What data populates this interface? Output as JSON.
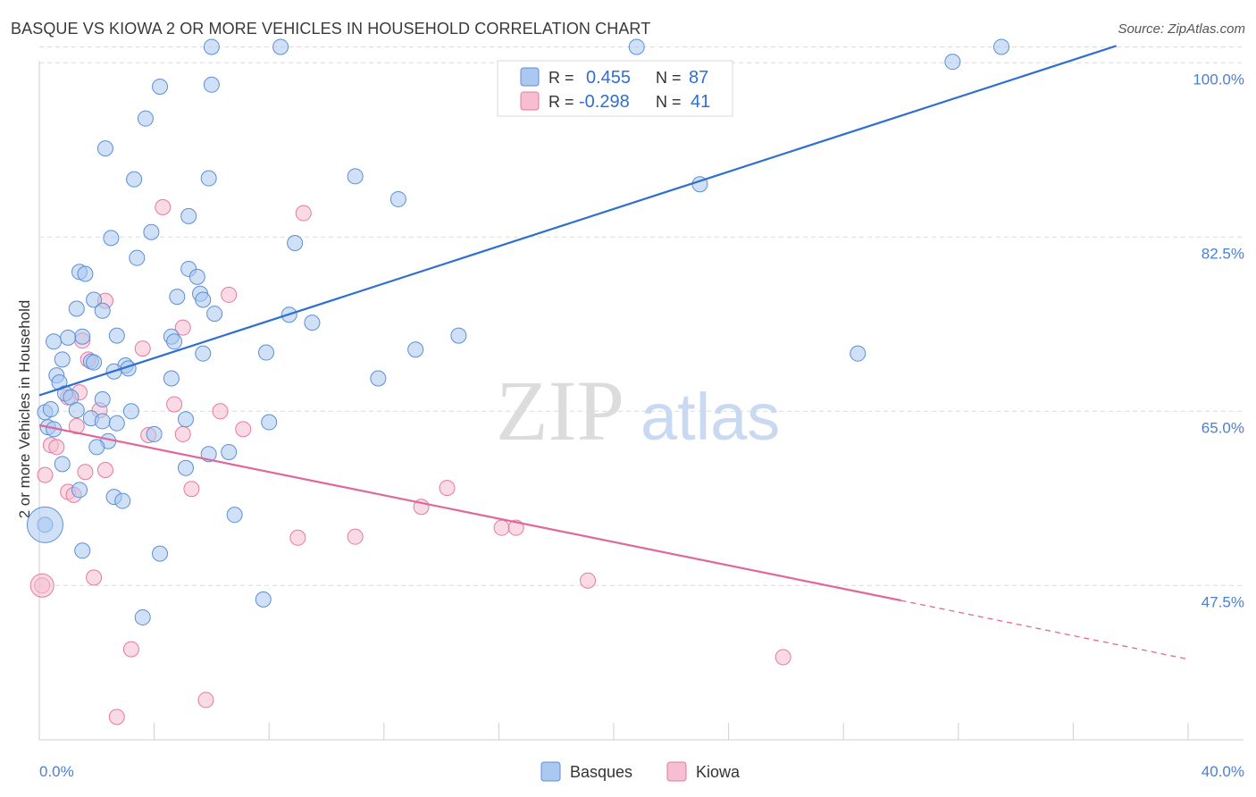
{
  "header": {
    "title": "BASQUE VS KIOWA 2 OR MORE VEHICLES IN HOUSEHOLD CORRELATION CHART",
    "source": "Source: ZipAtlas.com"
  },
  "watermark": {
    "zip": "ZIP",
    "atlas": "atlas"
  },
  "legend_top": {
    "rows": [
      {
        "r_label": "R =",
        "r_value": "0.455",
        "n_label": "N =",
        "n_value": "87"
      },
      {
        "r_label": "R =",
        "r_value": "-0.298",
        "n_label": "N =",
        "n_value": "41"
      }
    ]
  },
  "colors": {
    "basques_fill": "#aac8f0",
    "basques_stroke": "#5b8fd6",
    "basques_line": "#2f6fcf",
    "kiowa_fill": "#f6bed0",
    "kiowa_stroke": "#e47aa0",
    "kiowa_line": "#e0679a",
    "axis_text": "#4a7fd4",
    "grid": "#dcdcdc"
  },
  "chart_data": {
    "type": "scatter",
    "title": "BASQUE VS KIOWA 2 OR MORE VEHICLES IN HOUSEHOLD CORRELATION CHART",
    "xlabel": "",
    "ylabel": "2 or more Vehicles in Household",
    "xlim": [
      0,
      40
    ],
    "ylim": [
      32,
      102
    ],
    "x_tick_labels": [
      "0.0%",
      "40.0%"
    ],
    "y_ticks": [
      47.5,
      65.0,
      82.5,
      100.0
    ],
    "y_tick_labels": [
      "47.5%",
      "65.0%",
      "82.5%",
      "100.0%"
    ],
    "grid": true,
    "legend_position": "bottom-center",
    "series": [
      {
        "name": "Basques",
        "r": 0.455,
        "n": 87,
        "trend": {
          "x": [
            0,
            37.5
          ],
          "y": [
            66.6,
            101.7
          ]
        },
        "points": [
          [
            6.0,
            101.6
          ],
          [
            8.4,
            101.6
          ],
          [
            20.8,
            101.6
          ],
          [
            33.5,
            101.6
          ],
          [
            31.8,
            100.1
          ],
          [
            4.2,
            97.6
          ],
          [
            6.0,
            97.8
          ],
          [
            3.7,
            94.4
          ],
          [
            2.3,
            91.4
          ],
          [
            3.3,
            88.3
          ],
          [
            5.9,
            88.4
          ],
          [
            11.0,
            88.6
          ],
          [
            12.5,
            86.3
          ],
          [
            23.0,
            87.8
          ],
          [
            5.2,
            84.6
          ],
          [
            3.9,
            83.0
          ],
          [
            2.5,
            82.4
          ],
          [
            8.9,
            81.9
          ],
          [
            3.4,
            80.4
          ],
          [
            5.2,
            79.3
          ],
          [
            1.4,
            79.0
          ],
          [
            1.6,
            78.8
          ],
          [
            5.5,
            78.5
          ],
          [
            1.9,
            76.2
          ],
          [
            4.8,
            76.5
          ],
          [
            5.6,
            76.8
          ],
          [
            5.7,
            76.2
          ],
          [
            1.3,
            75.3
          ],
          [
            2.2,
            75.1
          ],
          [
            6.1,
            74.8
          ],
          [
            8.7,
            74.7
          ],
          [
            9.5,
            73.9
          ],
          [
            1.5,
            72.5
          ],
          [
            2.7,
            72.6
          ],
          [
            0.5,
            72.0
          ],
          [
            1.0,
            72.4
          ],
          [
            4.6,
            72.5
          ],
          [
            4.7,
            72.0
          ],
          [
            14.6,
            72.6
          ],
          [
            7.9,
            70.9
          ],
          [
            5.7,
            70.8
          ],
          [
            13.1,
            71.2
          ],
          [
            28.5,
            70.8
          ],
          [
            0.8,
            70.2
          ],
          [
            1.8,
            70.0
          ],
          [
            1.9,
            69.9
          ],
          [
            3.0,
            69.6
          ],
          [
            3.1,
            69.3
          ],
          [
            2.6,
            69.0
          ],
          [
            0.6,
            68.6
          ],
          [
            0.7,
            67.9
          ],
          [
            4.6,
            68.3
          ],
          [
            11.8,
            68.3
          ],
          [
            0.9,
            66.8
          ],
          [
            1.1,
            66.4
          ],
          [
            2.2,
            66.2
          ],
          [
            0.2,
            64.9
          ],
          [
            0.4,
            65.2
          ],
          [
            3.2,
            65.0
          ],
          [
            1.3,
            65.1
          ],
          [
            1.8,
            64.3
          ],
          [
            2.2,
            64.0
          ],
          [
            2.7,
            63.8
          ],
          [
            5.1,
            64.2
          ],
          [
            8.0,
            63.9
          ],
          [
            0.3,
            63.4
          ],
          [
            0.5,
            63.2
          ],
          [
            4.0,
            62.7
          ],
          [
            2.4,
            62.0
          ],
          [
            2.0,
            61.4
          ],
          [
            5.9,
            60.7
          ],
          [
            6.6,
            60.9
          ],
          [
            0.8,
            59.7
          ],
          [
            5.1,
            59.3
          ],
          [
            1.4,
            57.1
          ],
          [
            2.6,
            56.4
          ],
          [
            2.9,
            56.0
          ],
          [
            6.8,
            54.6
          ],
          [
            0.2,
            53.6
          ],
          [
            1.5,
            51.0
          ],
          [
            4.2,
            50.7
          ],
          [
            7.8,
            46.1
          ],
          [
            3.6,
            44.3
          ]
        ]
      },
      {
        "name": "Kiowa",
        "r": -0.298,
        "n": 41,
        "trend": {
          "x": [
            0,
            30
          ],
          "y": [
            63.6,
            46.0
          ],
          "dash_to": {
            "x": 40,
            "y": 40.1
          }
        },
        "points": [
          [
            4.3,
            85.5
          ],
          [
            9.2,
            84.9
          ],
          [
            6.6,
            76.7
          ],
          [
            2.3,
            76.1
          ],
          [
            5.0,
            73.4
          ],
          [
            1.5,
            72.1
          ],
          [
            3.6,
            71.3
          ],
          [
            1.7,
            70.2
          ],
          [
            1.4,
            66.9
          ],
          [
            1.0,
            66.4
          ],
          [
            2.1,
            65.1
          ],
          [
            4.7,
            65.7
          ],
          [
            6.3,
            65.0
          ],
          [
            7.1,
            63.2
          ],
          [
            1.3,
            63.5
          ],
          [
            5.0,
            62.7
          ],
          [
            3.8,
            62.6
          ],
          [
            0.4,
            61.6
          ],
          [
            0.6,
            61.4
          ],
          [
            2.3,
            59.1
          ],
          [
            1.6,
            58.9
          ],
          [
            0.2,
            58.6
          ],
          [
            1.0,
            56.9
          ],
          [
            1.2,
            56.6
          ],
          [
            5.3,
            57.2
          ],
          [
            14.2,
            57.3
          ],
          [
            13.3,
            55.4
          ],
          [
            16.1,
            53.3
          ],
          [
            16.6,
            53.3
          ],
          [
            9.0,
            52.3
          ],
          [
            11.0,
            52.4
          ],
          [
            0.1,
            47.5
          ],
          [
            1.9,
            48.3
          ],
          [
            19.1,
            48.0
          ],
          [
            3.2,
            41.1
          ],
          [
            25.9,
            40.3
          ],
          [
            5.8,
            36.0
          ],
          [
            2.7,
            34.3
          ]
        ]
      }
    ]
  }
}
